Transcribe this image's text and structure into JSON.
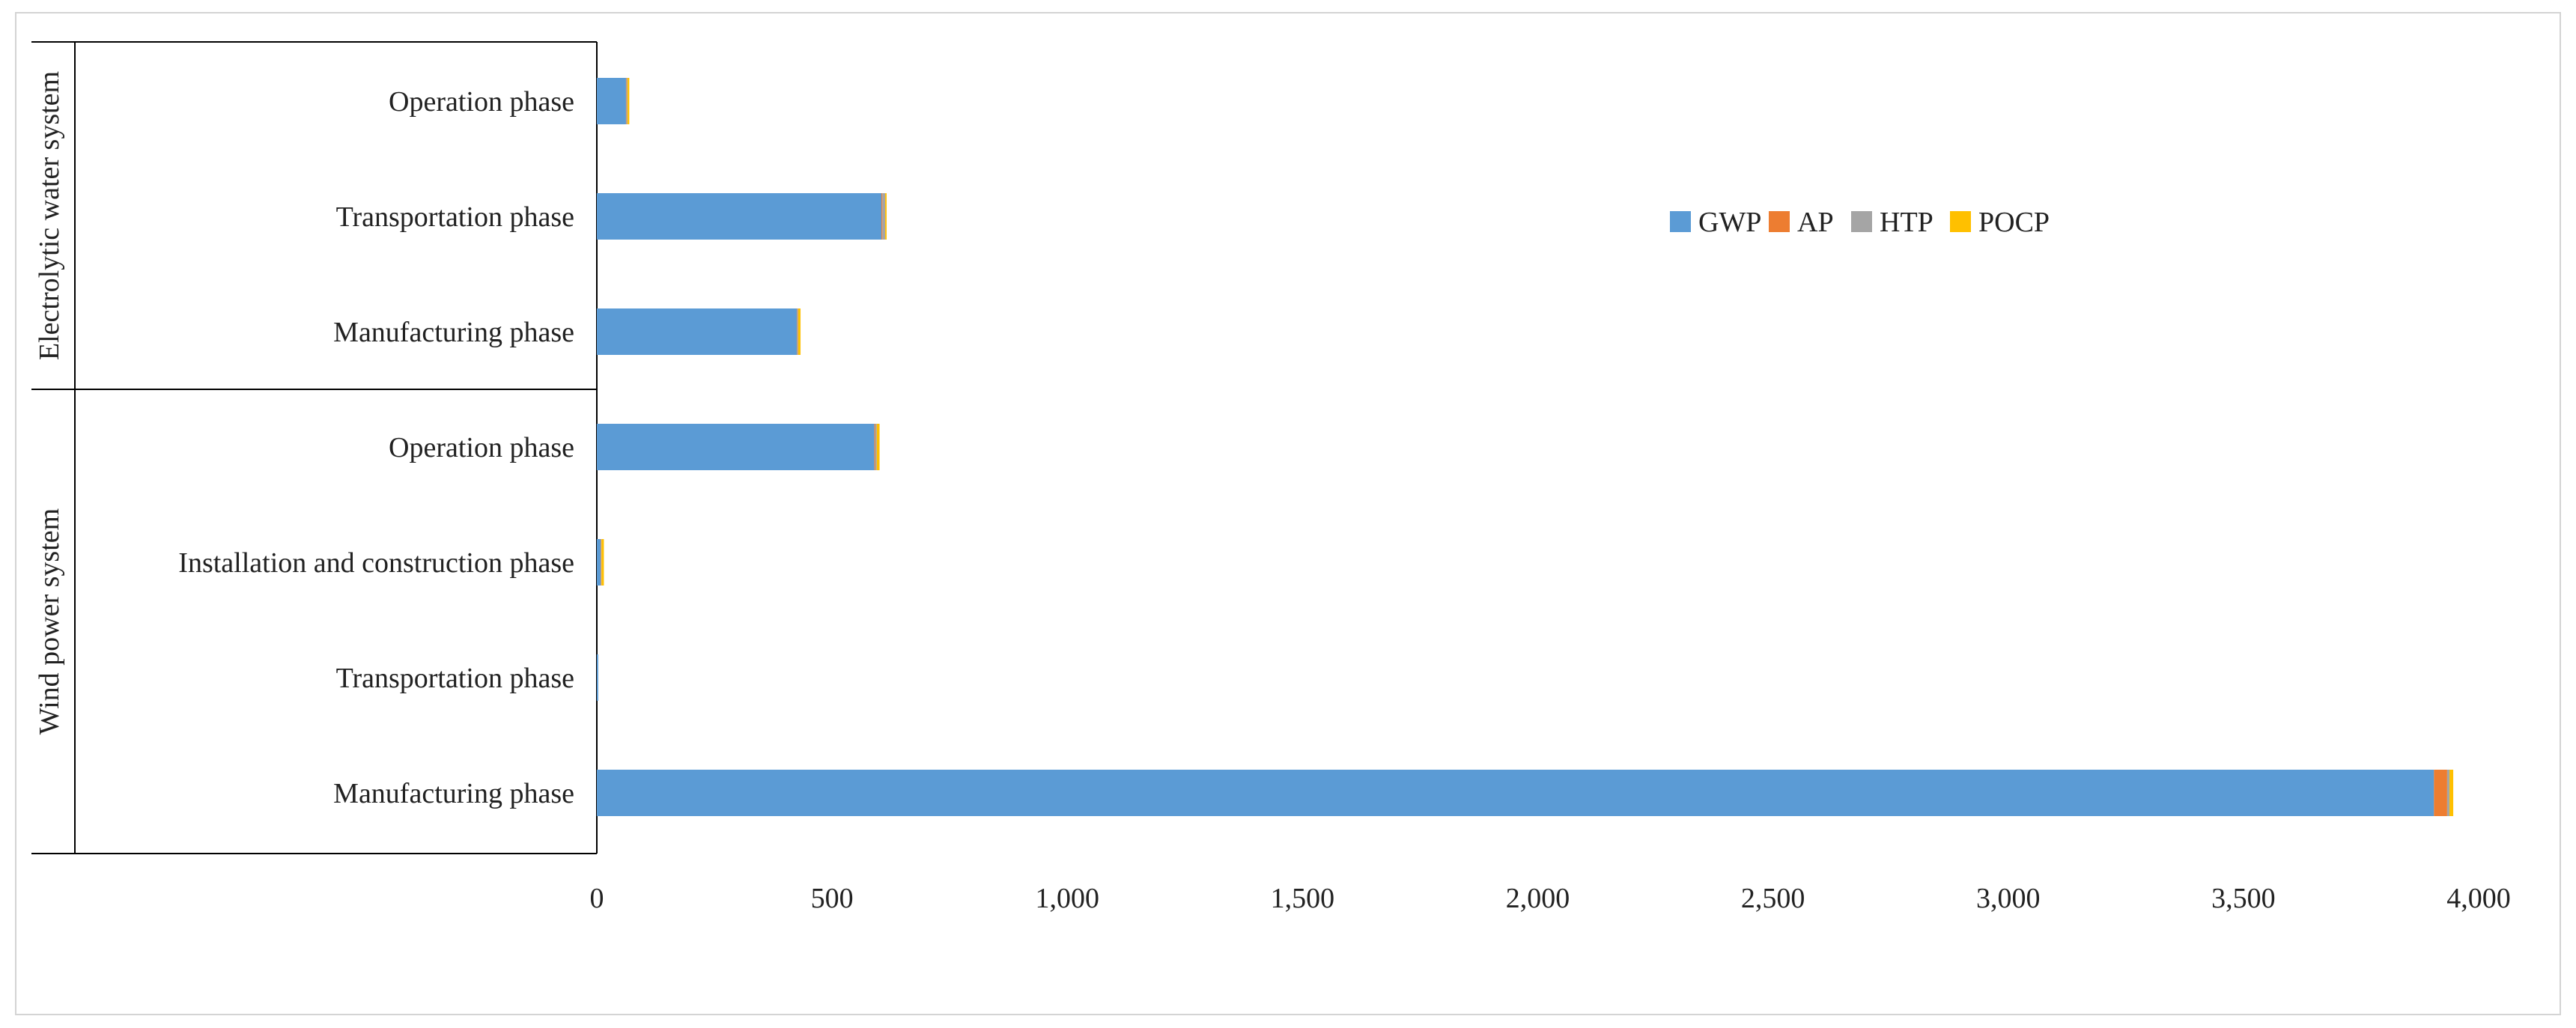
{
  "chart_data": {
    "type": "bar",
    "orientation": "horizontal",
    "stacked": true,
    "title": "",
    "xlabel": "",
    "ylabel": "",
    "xlim": [
      0,
      4000
    ],
    "x_ticks": [
      "0",
      "500",
      "1,000",
      "1,500",
      "2,000",
      "2,500",
      "3,000",
      "3,500",
      "4,000"
    ],
    "x_tick_values": [
      0,
      500,
      1000,
      1500,
      2000,
      2500,
      3000,
      3500,
      4000
    ],
    "groups": [
      {
        "name": "Electrolytic water system",
        "categories": [
          "Operation phase",
          "Transportation phase",
          "Manufacturing phase"
        ]
      },
      {
        "name": "Wind power system",
        "categories": [
          "Operation phase",
          "Installation and construction phase",
          "Transportation phase",
          "Manufacturing phase"
        ]
      }
    ],
    "categories": [
      "Operation phase",
      "Transportation phase",
      "Manufacturing phase",
      "Operation phase",
      "Installation and construction phase",
      "Transportation phase",
      "Manufacturing phase"
    ],
    "series": [
      {
        "name": "GWP",
        "color": "#5b9bd5",
        "values": [
          62,
          605,
          425,
          590,
          8,
          3,
          3905
        ]
      },
      {
        "name": "AP",
        "color": "#ed7d31",
        "values": [
          1,
          2,
          1,
          2,
          1,
          0,
          28
        ]
      },
      {
        "name": "HTP",
        "color": "#a5a5a5",
        "values": [
          2,
          6,
          2,
          3,
          1,
          0,
          5
        ]
      },
      {
        "name": "POCP",
        "color": "#ffc000",
        "values": [
          4,
          3,
          5,
          6,
          5,
          0,
          8
        ]
      }
    ],
    "legend_position": "upper-right",
    "grid": false
  }
}
